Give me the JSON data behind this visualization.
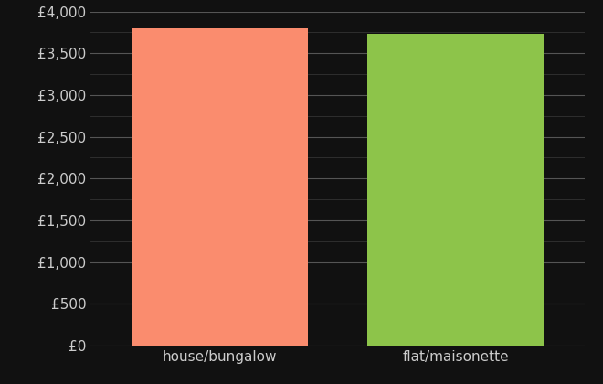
{
  "categories": [
    "house/bungalow",
    "flat/maisonette"
  ],
  "values": [
    3800,
    3730
  ],
  "bar_colors": [
    "#FA8C6E",
    "#8DC44A"
  ],
  "background_color": "#111111",
  "text_color": "#cccccc",
  "major_grid_color": "#555555",
  "minor_grid_color": "#333333",
  "ylim": [
    0,
    4000
  ],
  "ytick_major_step": 500,
  "ytick_minor_step": 250,
  "bar_width": 0.75,
  "xlabel": "",
  "ylabel": "",
  "figsize": [
    6.6,
    4.2
  ],
  "dpi": 100
}
